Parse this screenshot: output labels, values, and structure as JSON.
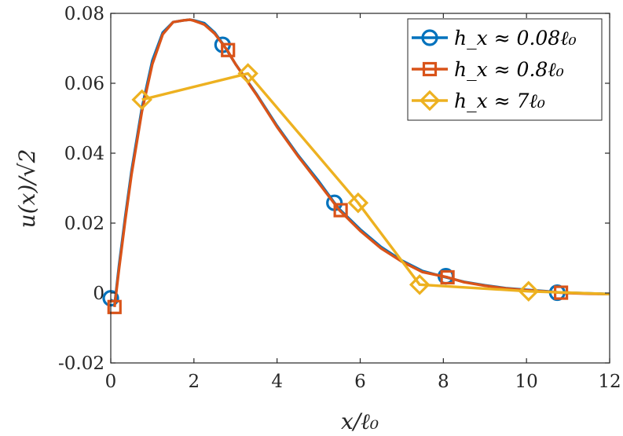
{
  "chart_data": {
    "type": "line",
    "title": "",
    "xlabel": "x/ℓ₀",
    "ylabel": "u(x)/√2",
    "xlim": [
      0,
      12
    ],
    "ylim": [
      -0.02,
      0.08
    ],
    "xticks": [
      "0",
      "2",
      "4",
      "6",
      "8",
      "10",
      "12"
    ],
    "yticks": [
      "-0.02",
      "0",
      "0.02",
      "0.04",
      "0.06",
      "0.08"
    ],
    "grid": false,
    "legend_position": "top-right",
    "series": [
      {
        "name": "h_x ≈ 0.08ℓ₀",
        "color": "#0072BD",
        "marker": "circle",
        "x": [
          0,
          0.1,
          0.2,
          0.35,
          0.5,
          0.75,
          1.0,
          1.25,
          1.5,
          1.75,
          1.9,
          2.0,
          2.25,
          2.5,
          2.7,
          3.0,
          3.5,
          4.0,
          4.5,
          5.0,
          5.38,
          5.5,
          6.0,
          6.5,
          7.0,
          7.5,
          8.06,
          8.5,
          9.0,
          9.5,
          10.0,
          10.5,
          10.74,
          11.0,
          11.5,
          12.0
        ],
        "y": [
          -0.002,
          -0.0025,
          0.008,
          0.022,
          0.035,
          0.053,
          0.0665,
          0.0745,
          0.0775,
          0.078,
          0.0782,
          0.078,
          0.0772,
          0.0745,
          0.0712,
          0.0655,
          0.057,
          0.0478,
          0.0395,
          0.032,
          0.0258,
          0.024,
          0.0182,
          0.0132,
          0.0093,
          0.0063,
          0.0045,
          0.0032,
          0.0022,
          0.0014,
          0.0009,
          0.0005,
          0.0002,
          0.0001,
          -0.0001,
          -0.0003
        ],
        "marker_x": [
          0.0,
          2.69,
          5.38,
          8.06,
          10.74
        ],
        "marker_y": [
          -0.0015,
          0.071,
          0.0258,
          0.0048,
          0.0001
        ]
      },
      {
        "name": "h_x ≈ 0.8ℓ₀",
        "color": "#D95319",
        "marker": "square",
        "x": [
          0.09,
          0.2,
          0.35,
          0.5,
          0.75,
          1.0,
          1.25,
          1.5,
          1.75,
          1.9,
          2.0,
          2.25,
          2.5,
          2.8,
          3.0,
          3.5,
          4.0,
          4.5,
          5.0,
          5.5,
          6.0,
          6.5,
          7.0,
          7.5,
          8.1,
          8.5,
          9.0,
          9.5,
          10.0,
          10.5,
          10.83,
          11.0,
          11.5,
          12.0
        ],
        "y": [
          -0.004,
          0.007,
          0.021,
          0.034,
          0.052,
          0.0655,
          0.074,
          0.0775,
          0.078,
          0.0782,
          0.0779,
          0.0768,
          0.0742,
          0.0695,
          0.0655,
          0.0568,
          0.0475,
          0.0392,
          0.0315,
          0.0237,
          0.0178,
          0.0128,
          0.009,
          0.006,
          0.0045,
          0.0031,
          0.0021,
          0.0013,
          0.0008,
          0.0004,
          0.0001,
          0.0,
          -0.0002,
          -0.0003
        ],
        "marker_x": [
          0.09,
          2.82,
          5.53,
          8.1,
          10.83
        ],
        "marker_y": [
          -0.004,
          0.0695,
          0.0237,
          0.0045,
          0.0001
        ]
      },
      {
        "name": "h_x ≈ 7ℓ₀",
        "color": "#EDB120",
        "marker": "diamond",
        "x": [
          0.75,
          3.3,
          5.95,
          7.43,
          10.05,
          12.0
        ],
        "y": [
          0.0553,
          0.0628,
          0.0258,
          0.0024,
          0.0005,
          -0.0003
        ],
        "marker_x": [
          0.75,
          3.3,
          5.95,
          7.43,
          10.05
        ],
        "marker_y": [
          0.0553,
          0.0628,
          0.0258,
          0.0024,
          0.0005
        ]
      }
    ]
  }
}
